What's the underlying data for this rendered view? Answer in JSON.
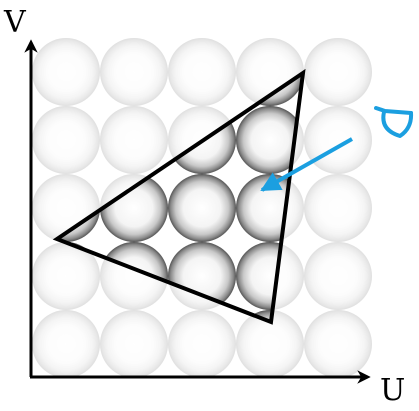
{
  "axes": {
    "x_label": "U",
    "y_label": "V"
  },
  "grid": {
    "rows": 5,
    "cols": 5
  },
  "colors": {
    "axis": "#000000",
    "triangle_stroke": "#000000",
    "viewer_arrow": "#1b9fe0",
    "sphere_highlight": "#ffffff",
    "sphere_shadow": "#555555",
    "sphere_faded_opacity": 0.18
  },
  "icons": {
    "viewer": "eye-icon",
    "arrow": "view-direction-arrow"
  }
}
